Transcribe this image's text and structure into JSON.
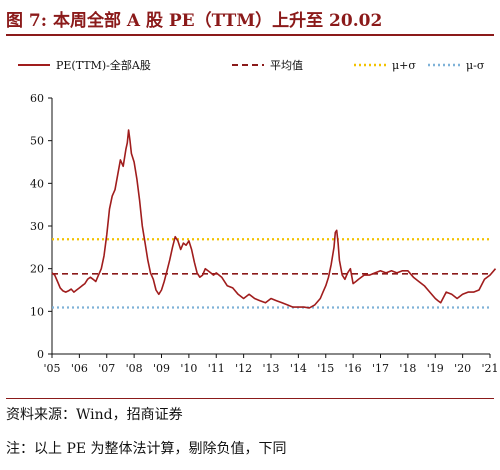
{
  "header": {
    "title": "图 7:  本周全部 A 股 PE（TTM）上升至 20.02"
  },
  "footer": {
    "source": "资料来源：Wind，招商证券",
    "note": "注：以上 PE 为整体法计算，剔除负值，下同"
  },
  "chart_data": {
    "type": "line",
    "title": "",
    "xlabel": "",
    "ylabel": "",
    "ylim": [
      0,
      60
    ],
    "yticks": [
      "0",
      "10",
      "20",
      "30",
      "40",
      "50",
      "60"
    ],
    "xticks": [
      "'05",
      "'06",
      "'07",
      "'08",
      "'09",
      "'10",
      "'11",
      "'12",
      "'13",
      "'14",
      "'15",
      "'16",
      "'17",
      "'18",
      "'19",
      "'20",
      "'21"
    ],
    "xlim": [
      2005,
      2021
    ],
    "grid": false,
    "legend_position": "top",
    "series": [
      {
        "name": "PE(TTM)-全部A股",
        "style": "solid",
        "color": "#a01d1d",
        "x": [
          2005.0,
          2005.1,
          2005.2,
          2005.3,
          2005.4,
          2005.5,
          2005.6,
          2005.7,
          2005.8,
          2005.9,
          2006.0,
          2006.1,
          2006.2,
          2006.3,
          2006.4,
          2006.5,
          2006.6,
          2006.7,
          2006.8,
          2006.9,
          2007.0,
          2007.1,
          2007.2,
          2007.3,
          2007.4,
          2007.5,
          2007.6,
          2007.7,
          2007.75,
          2007.8,
          2007.85,
          2007.9,
          2008.0,
          2008.1,
          2008.2,
          2008.3,
          2008.4,
          2008.5,
          2008.6,
          2008.7,
          2008.8,
          2008.9,
          2009.0,
          2009.1,
          2009.2,
          2009.3,
          2009.4,
          2009.5,
          2009.6,
          2009.7,
          2009.8,
          2009.9,
          2010.0,
          2010.1,
          2010.2,
          2010.3,
          2010.4,
          2010.5,
          2010.6,
          2010.7,
          2010.8,
          2010.9,
          2011.0,
          2011.2,
          2011.4,
          2011.6,
          2011.8,
          2012.0,
          2012.2,
          2012.4,
          2012.6,
          2012.8,
          2013.0,
          2013.2,
          2013.4,
          2013.6,
          2013.8,
          2014.0,
          2014.2,
          2014.4,
          2014.6,
          2014.8,
          2014.9,
          2015.0,
          2015.1,
          2015.2,
          2015.3,
          2015.35,
          2015.4,
          2015.45,
          2015.5,
          2015.6,
          2015.7,
          2015.8,
          2015.9,
          2016.0,
          2016.1,
          2016.2,
          2016.4,
          2016.6,
          2016.8,
          2017.0,
          2017.2,
          2017.4,
          2017.6,
          2017.8,
          2018.0,
          2018.2,
          2018.4,
          2018.6,
          2018.8,
          2019.0,
          2019.1,
          2019.2,
          2019.4,
          2019.6,
          2019.8,
          2020.0,
          2020.2,
          2020.4,
          2020.6,
          2020.8,
          2021.0,
          2021.2
        ],
        "values": [
          19.0,
          18.5,
          17.0,
          15.5,
          14.8,
          14.5,
          14.8,
          15.2,
          14.5,
          15.0,
          15.5,
          16.0,
          16.5,
          17.5,
          18.0,
          17.5,
          17.0,
          18.5,
          20.0,
          23.0,
          28.0,
          34.0,
          37.0,
          38.5,
          42.0,
          45.5,
          44.0,
          48.0,
          49.5,
          52.5,
          50.0,
          47.0,
          45.0,
          41.0,
          36.0,
          30.0,
          26.0,
          22.0,
          19.0,
          17.5,
          15.0,
          14.0,
          15.0,
          17.0,
          19.5,
          22.0,
          25.0,
          27.5,
          26.5,
          24.5,
          26.0,
          25.5,
          26.5,
          24.5,
          21.5,
          19.0,
          18.0,
          18.5,
          20.0,
          19.5,
          19.0,
          18.5,
          19.0,
          18.0,
          16.0,
          15.5,
          14.0,
          13.0,
          14.0,
          13.0,
          12.5,
          12.0,
          13.0,
          12.5,
          12.0,
          11.5,
          11.0,
          11.0,
          11.0,
          10.8,
          11.5,
          13.0,
          14.5,
          16.0,
          18.0,
          21.0,
          25.0,
          28.5,
          29.0,
          26.0,
          22.0,
          18.5,
          17.5,
          19.0,
          20.0,
          16.5,
          17.0,
          17.5,
          18.5,
          18.5,
          19.0,
          19.5,
          19.0,
          19.5,
          19.0,
          19.5,
          19.5,
          18.0,
          17.0,
          16.0,
          14.5,
          13.0,
          12.5,
          12.0,
          14.5,
          14.0,
          13.0,
          14.0,
          14.5,
          14.5,
          15.0,
          17.5,
          18.5,
          20.0
        ]
      },
      {
        "name": "平均值",
        "style": "dashed",
        "color": "#8b1a1a",
        "values": [
          18.8
        ]
      },
      {
        "name": "μ+σ",
        "style": "dotted",
        "color": "#f2c200",
        "values": [
          26.9
        ]
      },
      {
        "name": "μ-σ",
        "style": "dotted",
        "color": "#7fb2d8",
        "values": [
          10.9
        ]
      }
    ]
  }
}
